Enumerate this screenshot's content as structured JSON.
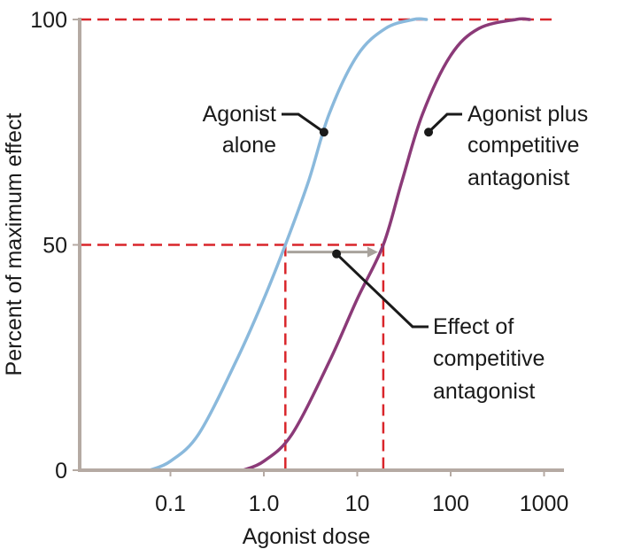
{
  "chart_data": {
    "type": "line",
    "xlabel": "Agonist dose",
    "ylabel": "Percent of maximum effect",
    "x_scale": "log",
    "xlim": [
      0.01,
      1500
    ],
    "ylim": [
      0,
      100
    ],
    "x_ticks": [
      0.1,
      1.0,
      10,
      100,
      1000
    ],
    "x_tick_labels": [
      "0.1",
      "1.0",
      "10",
      "100",
      "1000"
    ],
    "y_ticks": [
      0,
      50,
      100
    ],
    "y_tick_labels": [
      "0",
      "50",
      "100"
    ],
    "grid": false,
    "legend": "none",
    "series": [
      {
        "key": "agonist",
        "color": "#8ab9dc",
        "x": [
          0.06,
          0.1,
          0.2,
          0.5,
          1.0,
          1.7,
          3.0,
          5.0,
          10,
          20,
          40,
          55
        ],
        "y": [
          0,
          2,
          8,
          24,
          38,
          50,
          64,
          79,
          92,
          98,
          100,
          100
        ]
      },
      {
        "key": "agonist_plus_antagonist",
        "color": "#8b3a78",
        "x": [
          0.6,
          1.0,
          2.0,
          5.0,
          10,
          19,
          30,
          50,
          100,
          200,
          500,
          700
        ],
        "y": [
          0,
          2,
          8,
          24,
          38,
          50,
          64,
          79,
          92,
          98,
          100,
          100
        ]
      }
    ],
    "reference_lines": {
      "color": "#d9252a",
      "y_levels": [
        100,
        50
      ],
      "x_levels": [
        1.7,
        19
      ]
    },
    "shift_arrow": {
      "from_x": 1.7,
      "to_x": 19,
      "y": 48,
      "color": "#a8a29c"
    },
    "annotations": [
      {
        "lines": [
          "Agonist",
          "alone"
        ],
        "anchor_x": 4.4,
        "anchor_y": 75
      },
      {
        "lines": [
          "Agonist plus",
          "competitive",
          "antagonist"
        ],
        "anchor_x": 58,
        "anchor_y": 75
      },
      {
        "lines": [
          "Effect of",
          "competitive",
          "antagonist"
        ],
        "anchor_x": 6.0,
        "anchor_y": 48
      }
    ]
  }
}
